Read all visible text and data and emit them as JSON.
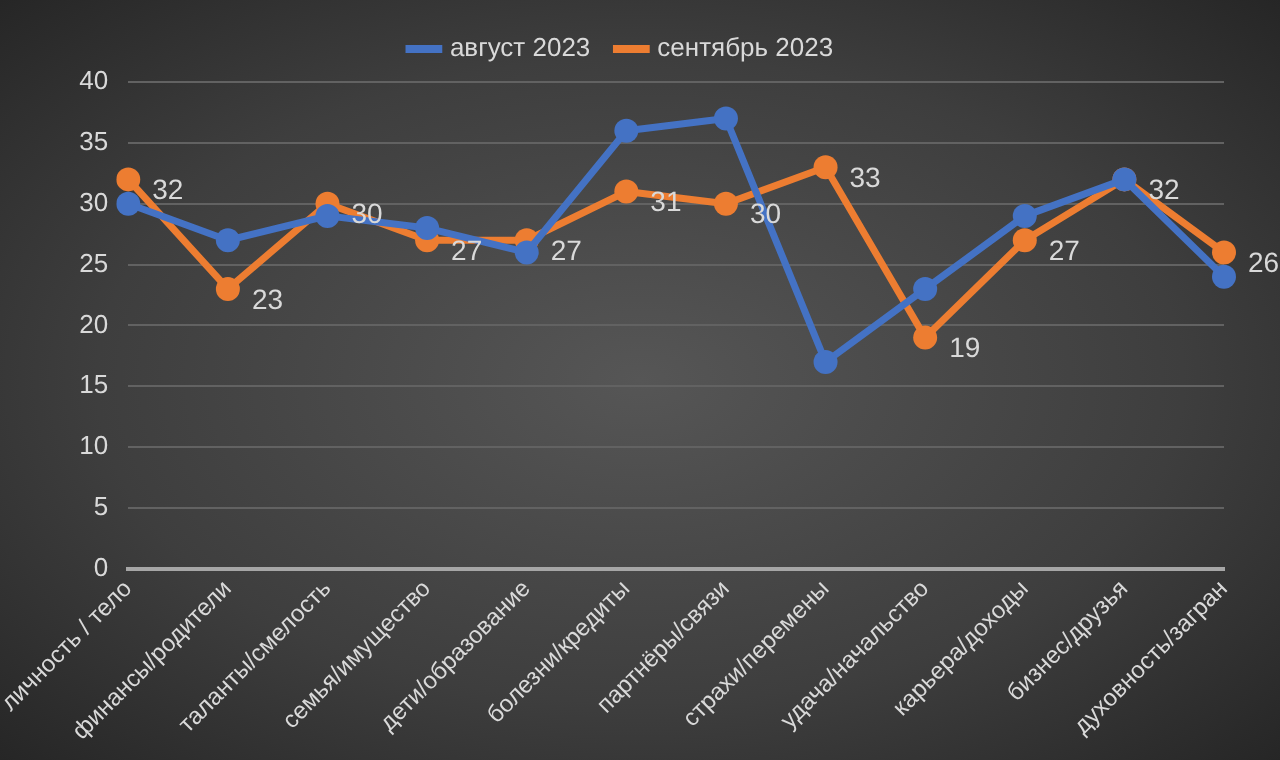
{
  "chart_data": {
    "type": "line",
    "categories": [
      "личность / тело",
      "финансы/родители",
      "таланты/смелость",
      "семья/имущество",
      "дети/образование",
      "болезни/кредиты",
      "партнёры/связи",
      "страхи/перемены",
      "удача/начальство",
      "карьера/доходы",
      "бизнес/друзья",
      "духовность/загран"
    ],
    "series": [
      {
        "name": "август 2023",
        "color": "#4472c4",
        "values": [
          30,
          27,
          29,
          28,
          26,
          36,
          37,
          17,
          23,
          29,
          32,
          24
        ]
      },
      {
        "name": "сентябрь 2023",
        "color": "#ed7d31",
        "values": [
          32,
          23,
          30,
          27,
          27,
          31,
          30,
          33,
          19,
          27,
          32,
          26
        ],
        "value_labels": [
          "32",
          "23",
          "30",
          "27",
          "27",
          "31",
          "30",
          "33",
          "19",
          "27",
          "32",
          "26"
        ]
      }
    ],
    "ylim": [
      0,
      40
    ],
    "yticks": [
      0,
      5,
      10,
      15,
      20,
      25,
      30,
      35,
      40
    ],
    "grid": "y",
    "legend": "top",
    "marker": "circle",
    "line_style": "solid"
  }
}
